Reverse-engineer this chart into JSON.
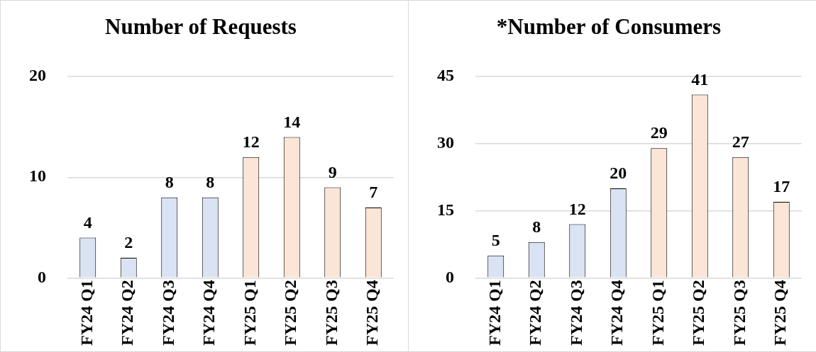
{
  "chart_data": [
    {
      "type": "bar",
      "title": "Number of Requests",
      "categories": [
        "FY24 Q1",
        "FY24 Q2",
        "FY24 Q3",
        "FY24 Q4",
        "FY25 Q1",
        "FY25 Q2",
        "FY25 Q3",
        "FY25 Q4"
      ],
      "values": [
        4,
        2,
        8,
        8,
        12,
        14,
        9,
        7
      ],
      "colors": [
        "#dae3f3",
        "#dae3f3",
        "#dae3f3",
        "#dae3f3",
        "#fbe5d6",
        "#fbe5d6",
        "#fbe5d6",
        "#fbe5d6"
      ],
      "ylim": [
        0,
        20
      ],
      "yticks": [
        0,
        10,
        20
      ],
      "grid": "y",
      "data_labels": true
    },
    {
      "type": "bar",
      "title": "*Number of Consumers",
      "categories": [
        "FY24 Q1",
        "FY24 Q2",
        "FY24 Q3",
        "FY24 Q4",
        "FY25 Q1",
        "FY25 Q2",
        "FY25 Q3",
        "FY25 Q4"
      ],
      "values": [
        5,
        8,
        12,
        20,
        29,
        41,
        27,
        17
      ],
      "colors": [
        "#dae3f3",
        "#dae3f3",
        "#dae3f3",
        "#dae3f3",
        "#fbe5d6",
        "#fbe5d6",
        "#fbe5d6",
        "#fbe5d6"
      ],
      "ylim": [
        0,
        45
      ],
      "yticks": [
        0,
        15,
        30,
        45
      ],
      "grid": "y",
      "data_labels": true
    }
  ]
}
